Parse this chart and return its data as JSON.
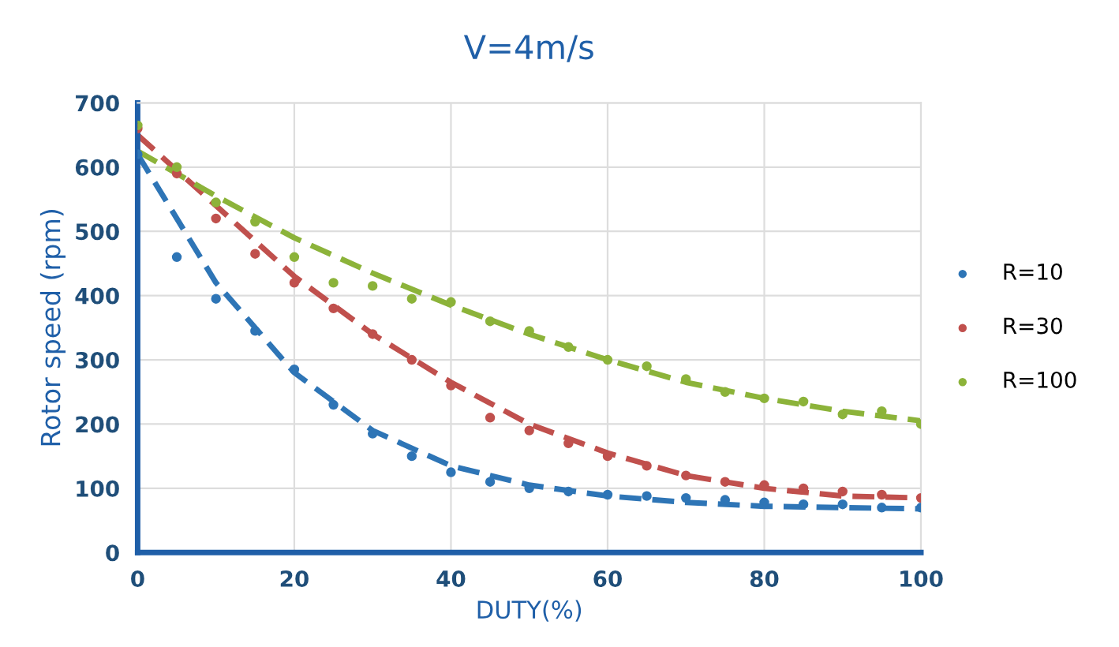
{
  "chart_data": {
    "type": "scatter",
    "title": "V=4m/s",
    "xlabel": "DUTY(%)",
    "ylabel": "Rotor speed (rpm)",
    "x": [
      0,
      5,
      10,
      15,
      20,
      25,
      30,
      35,
      40,
      45,
      50,
      55,
      60,
      65,
      70,
      75,
      80,
      85,
      90,
      95,
      100
    ],
    "xlim": [
      0,
      100
    ],
    "xticks": [
      0,
      20,
      40,
      60,
      80,
      100
    ],
    "ylim": [
      0,
      700
    ],
    "yticks": [
      0,
      100,
      200,
      300,
      400,
      500,
      600,
      700
    ],
    "grid": true,
    "legend": "right",
    "marker": "circle",
    "series": [
      {
        "name": "R=10",
        "color": "#2e75b6",
        "values": [
          620,
          460,
          395,
          345,
          285,
          230,
          185,
          150,
          125,
          110,
          100,
          95,
          90,
          88,
          85,
          82,
          78,
          75,
          75,
          70,
          70
        ]
      },
      {
        "name": "R=30",
        "color": "#c0504d",
        "values": [
          660,
          590,
          520,
          465,
          420,
          380,
          340,
          300,
          260,
          210,
          190,
          170,
          150,
          135,
          120,
          110,
          105,
          100,
          95,
          90,
          85
        ]
      },
      {
        "name": "R=100",
        "color": "#8cb33a",
        "values": [
          665,
          600,
          545,
          515,
          460,
          420,
          415,
          395,
          390,
          360,
          345,
          320,
          300,
          290,
          270,
          250,
          240,
          235,
          215,
          220,
          200
        ]
      },
      {
        "type": "line",
        "line_style": "dashed",
        "marker": "none",
        "color": "#2e75b6",
        "x": [
          0,
          10,
          20,
          30,
          40,
          50,
          60,
          70,
          80,
          90,
          100
        ],
        "values": [
          620,
          420,
          280,
          190,
          135,
          105,
          88,
          78,
          72,
          70,
          68
        ]
      },
      {
        "type": "line",
        "line_style": "dashed",
        "marker": "none",
        "color": "#c0504d",
        "x": [
          0,
          10,
          20,
          30,
          40,
          50,
          60,
          70,
          80,
          90,
          100
        ],
        "values": [
          650,
          540,
          430,
          340,
          265,
          200,
          155,
          120,
          100,
          88,
          85
        ]
      },
      {
        "type": "line",
        "line_style": "dashed",
        "marker": "none",
        "color": "#8cb33a",
        "x": [
          0,
          10,
          20,
          30,
          40,
          50,
          60,
          70,
          80,
          90,
          100
        ],
        "values": [
          625,
          555,
          490,
          435,
          385,
          340,
          300,
          265,
          240,
          220,
          205
        ]
      }
    ]
  }
}
